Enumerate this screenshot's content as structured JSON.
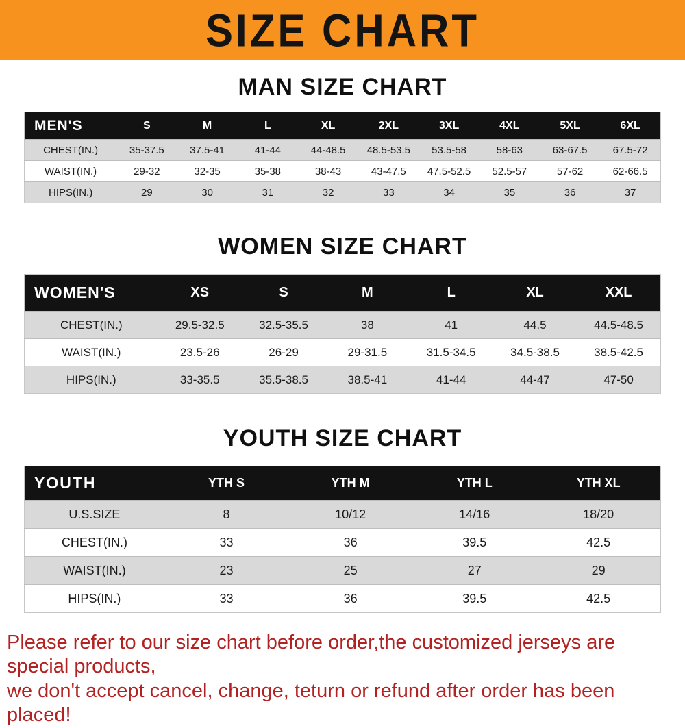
{
  "banner": {
    "title": "SIZE CHART",
    "background": "#F7921E",
    "text_color": "#141414"
  },
  "sections": [
    {
      "id": "men",
      "heading": "MAN SIZE CHART",
      "table": {
        "label": "MEN'S",
        "columns": [
          "S",
          "M",
          "L",
          "XL",
          "2XL",
          "3XL",
          "4XL",
          "5XL",
          "6XL"
        ],
        "rows": [
          {
            "label": "CHEST(IN.)",
            "values": [
              "35-37.5",
              "37.5-41",
              "41-44",
              "44-48.5",
              "48.5-53.5",
              "53.5-58",
              "58-63",
              "63-67.5",
              "67.5-72"
            ]
          },
          {
            "label": "WAIST(IN.)",
            "values": [
              "29-32",
              "32-35",
              "35-38",
              "38-43",
              "43-47.5",
              "47.5-52.5",
              "52.5-57",
              "57-62",
              "62-66.5"
            ]
          },
          {
            "label": "HIPS(IN.)",
            "values": [
              "29",
              "30",
              "31",
              "32",
              "33",
              "34",
              "35",
              "36",
              "37"
            ]
          }
        ]
      }
    },
    {
      "id": "women",
      "heading": "WOMEN SIZE CHART",
      "table": {
        "label": "WOMEN'S",
        "columns": [
          "XS",
          "S",
          "M",
          "L",
          "XL",
          "XXL"
        ],
        "rows": [
          {
            "label": "CHEST(IN.)",
            "values": [
              "29.5-32.5",
              "32.5-35.5",
              "38",
              "41",
              "44.5",
              "44.5-48.5"
            ]
          },
          {
            "label": "WAIST(IN.)",
            "values": [
              "23.5-26",
              "26-29",
              "29-31.5",
              "31.5-34.5",
              "34.5-38.5",
              "38.5-42.5"
            ]
          },
          {
            "label": "HIPS(IN.)",
            "values": [
              "33-35.5",
              "35.5-38.5",
              "38.5-41",
              "41-44",
              "44-47",
              "47-50"
            ]
          }
        ]
      }
    },
    {
      "id": "youth",
      "heading": "YOUTH SIZE CHART",
      "table": {
        "label": "YOUTH",
        "columns": [
          "YTH S",
          "YTH M",
          "YTH L",
          "YTH XL"
        ],
        "rows": [
          {
            "label": "U.S.SIZE",
            "values": [
              "8",
              "10/12",
              "14/16",
              "18/20"
            ]
          },
          {
            "label": "CHEST(IN.)",
            "values": [
              "33",
              "36",
              "39.5",
              "42.5"
            ]
          },
          {
            "label": "WAIST(IN.)",
            "values": [
              "23",
              "25",
              "27",
              "29"
            ]
          },
          {
            "label": "HIPS(IN.)",
            "values": [
              "33",
              "36",
              "39.5",
              "42.5"
            ]
          }
        ]
      }
    }
  ],
  "footer": {
    "line1": "Please refer to our size chart before order,the customized jerseys are special products,",
    "line2": "we don't accept cancel, change, teturn or refund after order has been placed!",
    "text_color": "#B22222"
  },
  "colors": {
    "banner_bg": "#F7921E",
    "header_row_bg": "#121212",
    "header_row_text": "#FFFFFF",
    "stripe_row_bg": "#D9D9D9",
    "plain_row_bg": "#FFFFFF"
  }
}
